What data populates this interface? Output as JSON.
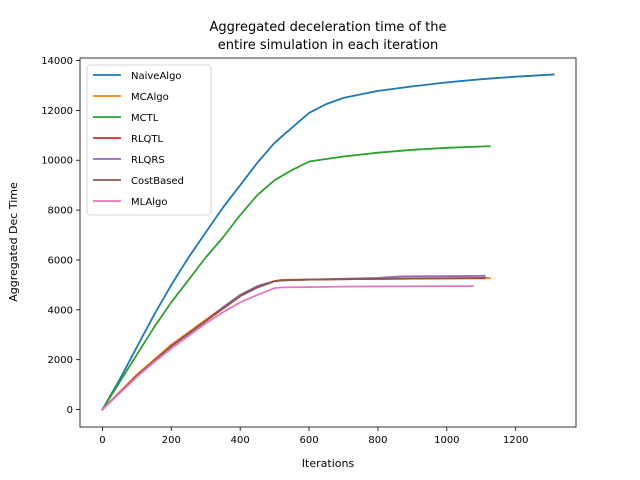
{
  "chart_data": {
    "type": "line",
    "title_line1": "Aggregated deceleration time of the",
    "title_line2": "entire simulation in each iteration",
    "xlabel": "Iterations",
    "ylabel": "Aggregated Dec Time",
    "xlim": [
      -65,
      1375
    ],
    "ylim": [
      -700,
      14100
    ],
    "xticks": [
      0,
      200,
      400,
      600,
      800,
      1000,
      1200
    ],
    "yticks": [
      0,
      2000,
      4000,
      6000,
      8000,
      10000,
      12000,
      14000
    ],
    "legend_position": "upper-left",
    "grid": false,
    "series": [
      {
        "name": "NaiveAlgo",
        "color": "#1f77b4",
        "x": [
          0,
          50,
          100,
          150,
          200,
          250,
          300,
          350,
          400,
          450,
          500,
          550,
          600,
          650,
          700,
          800,
          900,
          1000,
          1100,
          1200,
          1300,
          1310
        ],
        "y": [
          0,
          1200,
          2500,
          3800,
          5000,
          6100,
          7100,
          8100,
          9000,
          9900,
          10700,
          11300,
          11900,
          12250,
          12500,
          12780,
          12960,
          13120,
          13250,
          13350,
          13430,
          13440
        ]
      },
      {
        "name": "MCAlgo",
        "color": "#ff7f0e",
        "x": [
          0,
          50,
          100,
          150,
          200,
          250,
          300,
          350,
          400,
          450,
          500,
          520,
          600,
          800,
          1000,
          1125
        ],
        "y": [
          0,
          700,
          1400,
          2000,
          2600,
          3100,
          3600,
          4100,
          4600,
          4950,
          5150,
          5200,
          5220,
          5250,
          5270,
          5280
        ]
      },
      {
        "name": "MCTL",
        "color": "#2ca02c",
        "x": [
          0,
          50,
          100,
          150,
          200,
          250,
          300,
          350,
          400,
          450,
          500,
          550,
          600,
          650,
          700,
          800,
          900,
          1000,
          1100,
          1125
        ],
        "y": [
          0,
          1100,
          2200,
          3300,
          4300,
          5200,
          6100,
          6900,
          7800,
          8600,
          9200,
          9600,
          9950,
          10050,
          10150,
          10300,
          10420,
          10500,
          10550,
          10560
        ]
      },
      {
        "name": "RLQTL",
        "color": "#d62728",
        "x": [
          0,
          50,
          100,
          150,
          200,
          250,
          300,
          350,
          400,
          450,
          500,
          520,
          600,
          800,
          1000,
          1110
        ],
        "y": [
          0,
          680,
          1350,
          1950,
          2550,
          3050,
          3550,
          4050,
          4550,
          4900,
          5150,
          5180,
          5210,
          5240,
          5260,
          5270
        ]
      },
      {
        "name": "RLQRS",
        "color": "#9467bd",
        "x": [
          0,
          50,
          100,
          150,
          200,
          250,
          300,
          350,
          400,
          450,
          500,
          520,
          600,
          800,
          870,
          1000,
          1110
        ],
        "y": [
          0,
          680,
          1350,
          1950,
          2550,
          3050,
          3550,
          4100,
          4600,
          4950,
          5150,
          5180,
          5210,
          5280,
          5340,
          5350,
          5360
        ]
      },
      {
        "name": "CostBased",
        "color": "#8c564b",
        "x": [
          0,
          50,
          100,
          150,
          200,
          250,
          300,
          350,
          400,
          450,
          500,
          520,
          600,
          800,
          1000,
          1110
        ],
        "y": [
          0,
          680,
          1350,
          1950,
          2550,
          3050,
          3550,
          4050,
          4550,
          4900,
          5150,
          5180,
          5210,
          5240,
          5260,
          5270
        ]
      },
      {
        "name": "MLAlgo",
        "color": "#e377c2",
        "x": [
          0,
          50,
          100,
          150,
          200,
          250,
          300,
          350,
          400,
          450,
          500,
          520,
          600,
          700,
          800,
          1000,
          1075
        ],
        "y": [
          0,
          650,
          1300,
          1900,
          2450,
          2950,
          3450,
          3900,
          4300,
          4600,
          4870,
          4900,
          4910,
          4930,
          4940,
          4950,
          4950
        ]
      }
    ]
  }
}
